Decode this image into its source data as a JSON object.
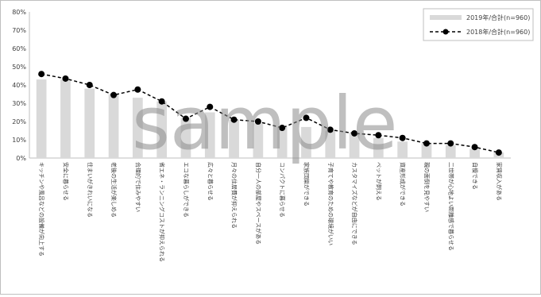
{
  "chart_data": {
    "type": "bar",
    "categories": [
      "キッチンや風呂などの設備が向上する",
      "安全に暮らせる",
      "住まいがきれいになる",
      "老後の生活が楽しめる",
      "合理的で住みやすい",
      "省エネ・ランニングコストが抑えられる",
      "エコな暮らしができる",
      "広々と暮らせる",
      "月々の住居費が抑えられる",
      "自分一人の部屋やスペースがある",
      "コンパクトに暮らせる",
      "家族団欒ができる",
      "子育てや教育のための環境がいい",
      "カスタマイズなどが自由にできる",
      "ペットが飼える",
      "資産形成ができる",
      "親の面倒を見やすい",
      "二世帯が心地よい距離感で暮らせる",
      "自慢できる",
      "家賃収入がある"
    ],
    "series": [
      {
        "name": "2019年/合計(n=960)",
        "type": "bar",
        "color": "#d9d9d9",
        "values": [
          43,
          43,
          38,
          35,
          33,
          31,
          22,
          25,
          21,
          19,
          17,
          17,
          15,
          14,
          11,
          9,
          8,
          7,
          5,
          3
        ]
      },
      {
        "name": "2018年/合計(n=960)",
        "type": "line",
        "color": "#000000",
        "style": "dashed",
        "marker": "circle",
        "values": [
          46,
          43.5,
          40,
          34.5,
          37.5,
          31,
          21.5,
          28,
          21,
          20,
          16.5,
          22,
          15.5,
          13.5,
          12.5,
          11,
          8,
          8,
          6,
          3
        ]
      }
    ],
    "ylim": [
      0,
      80
    ],
    "yticks": [
      0,
      10,
      20,
      30,
      40,
      50,
      60,
      70,
      80
    ],
    "ytick_suffix": "%",
    "grid": false,
    "legend_position": "top-right"
  },
  "watermark": "sample"
}
